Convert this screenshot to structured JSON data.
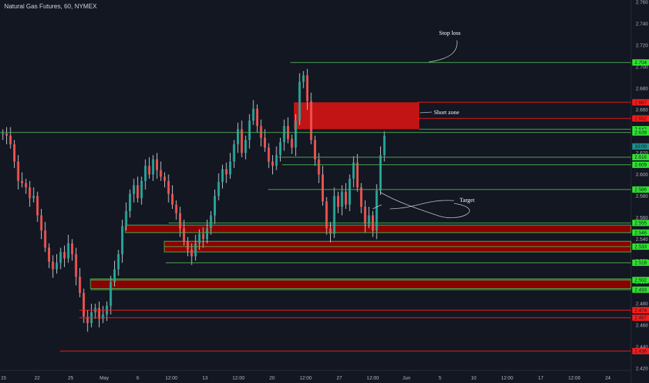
{
  "window": {
    "title": "Natural Gas Futures, 60, NYMEX"
  },
  "colors": {
    "background": "#131722",
    "up": "#26a69a",
    "down": "#ef5350",
    "green_level": "#4caf50",
    "green_badge": "#2ee62e",
    "red_level": "#ff1a1a",
    "red_zone": "#8b0000",
    "short_zone": "#c21414",
    "teal_badge": "#1f8f8f",
    "axis_text": "#b2b5be"
  },
  "chart_data": {
    "type": "candlestick",
    "ylim": [
      2.418,
      2.762
    ],
    "y_ticks": [
      "2.760",
      "2.740",
      "2.720",
      "2.700",
      "2.680",
      "2.660",
      "2.640",
      "2.620",
      "2.600",
      "2.580",
      "2.560",
      "2.540",
      "2.520",
      "2.500",
      "2.480",
      "2.460",
      "2.440",
      "2.420"
    ],
    "x_ticks": [
      "15",
      "22",
      "25",
      "May",
      "6",
      "12:00",
      "13",
      "12:00",
      "20",
      "12:00",
      "27",
      "12:00",
      "Jun",
      "5",
      "10",
      "12:00",
      "17",
      "12:00",
      "24"
    ],
    "current_price": {
      "value": 2.626,
      "label": "10:00"
    },
    "levels": [
      {
        "price": 2.704,
        "label": "2.704",
        "kind": "green"
      },
      {
        "price": 2.667,
        "label": "2.667",
        "kind": "red"
      },
      {
        "price": 2.652,
        "label": "2.652",
        "kind": "red"
      },
      {
        "price": 2.642,
        "label": "2.642",
        "kind": "green"
      },
      {
        "price": 2.639,
        "label": "2.639",
        "kind": "green"
      },
      {
        "price": 2.616,
        "label": "2.616",
        "kind": "green"
      },
      {
        "price": 2.609,
        "label": "2.609",
        "kind": "green"
      },
      {
        "price": 2.586,
        "label": "2.586",
        "kind": "green"
      },
      {
        "price": 2.555,
        "label": "2.555",
        "kind": "green"
      },
      {
        "price": 2.546,
        "label": "2.546",
        "kind": "green"
      },
      {
        "price": 2.533,
        "label": "2.533",
        "kind": "green"
      },
      {
        "price": 2.518,
        "label": "2.518",
        "kind": "green"
      },
      {
        "price": 2.502,
        "label": "2.502",
        "kind": "green"
      },
      {
        "price": 2.493,
        "label": "2.493",
        "kind": "green"
      },
      {
        "price": 2.474,
        "label": "2.474",
        "kind": "red"
      },
      {
        "price": 2.467,
        "label": "2.467",
        "kind": "red"
      },
      {
        "price": 2.436,
        "label": "2.436",
        "kind": "red"
      }
    ],
    "zones": [
      {
        "name": "short-zone",
        "top": 2.667,
        "bottom": 2.642
      },
      {
        "name": "demand-zone-1",
        "top": 2.553,
        "bottom": 2.546
      },
      {
        "name": "demand-zone-2",
        "top": 2.538,
        "bottom": 2.528
      },
      {
        "name": "demand-zone-3",
        "top": 2.503,
        "bottom": 2.494
      }
    ],
    "annotations": {
      "stop_loss": "Stop loss",
      "short_zone": "Short zone",
      "target": "Target"
    },
    "prices": [
      2.638,
      2.636,
      2.628,
      2.612,
      2.594,
      2.592,
      2.588,
      2.578,
      2.58,
      2.562,
      2.548,
      2.532,
      2.519,
      2.512,
      2.518,
      2.528,
      2.522,
      2.536,
      2.526,
      2.505,
      2.49,
      2.468,
      2.462,
      2.472,
      2.476,
      2.466,
      2.47,
      2.478,
      2.5,
      2.512,
      2.526,
      2.552,
      2.566,
      2.582,
      2.59,
      2.578,
      2.594,
      2.608,
      2.6,
      2.614,
      2.604,
      2.598,
      2.594,
      2.582,
      2.572,
      2.564,
      2.55,
      2.538,
      2.53,
      2.524,
      2.536,
      2.545,
      2.54,
      2.55,
      2.562,
      2.58,
      2.593,
      2.605,
      2.6,
      2.612,
      2.628,
      2.642,
      2.62,
      2.632,
      2.65,
      2.661,
      2.645,
      2.634,
      2.625,
      2.612,
      2.608,
      2.618,
      2.63,
      2.645,
      2.633,
      2.625,
      2.65,
      2.686,
      2.692,
      2.668,
      2.632,
      2.614,
      2.6,
      2.575,
      2.55,
      2.545,
      2.58,
      2.57,
      2.584,
      2.572,
      2.596,
      2.611,
      2.588,
      2.57,
      2.554,
      2.562,
      2.548,
      2.585,
      2.618,
      2.636
    ]
  }
}
